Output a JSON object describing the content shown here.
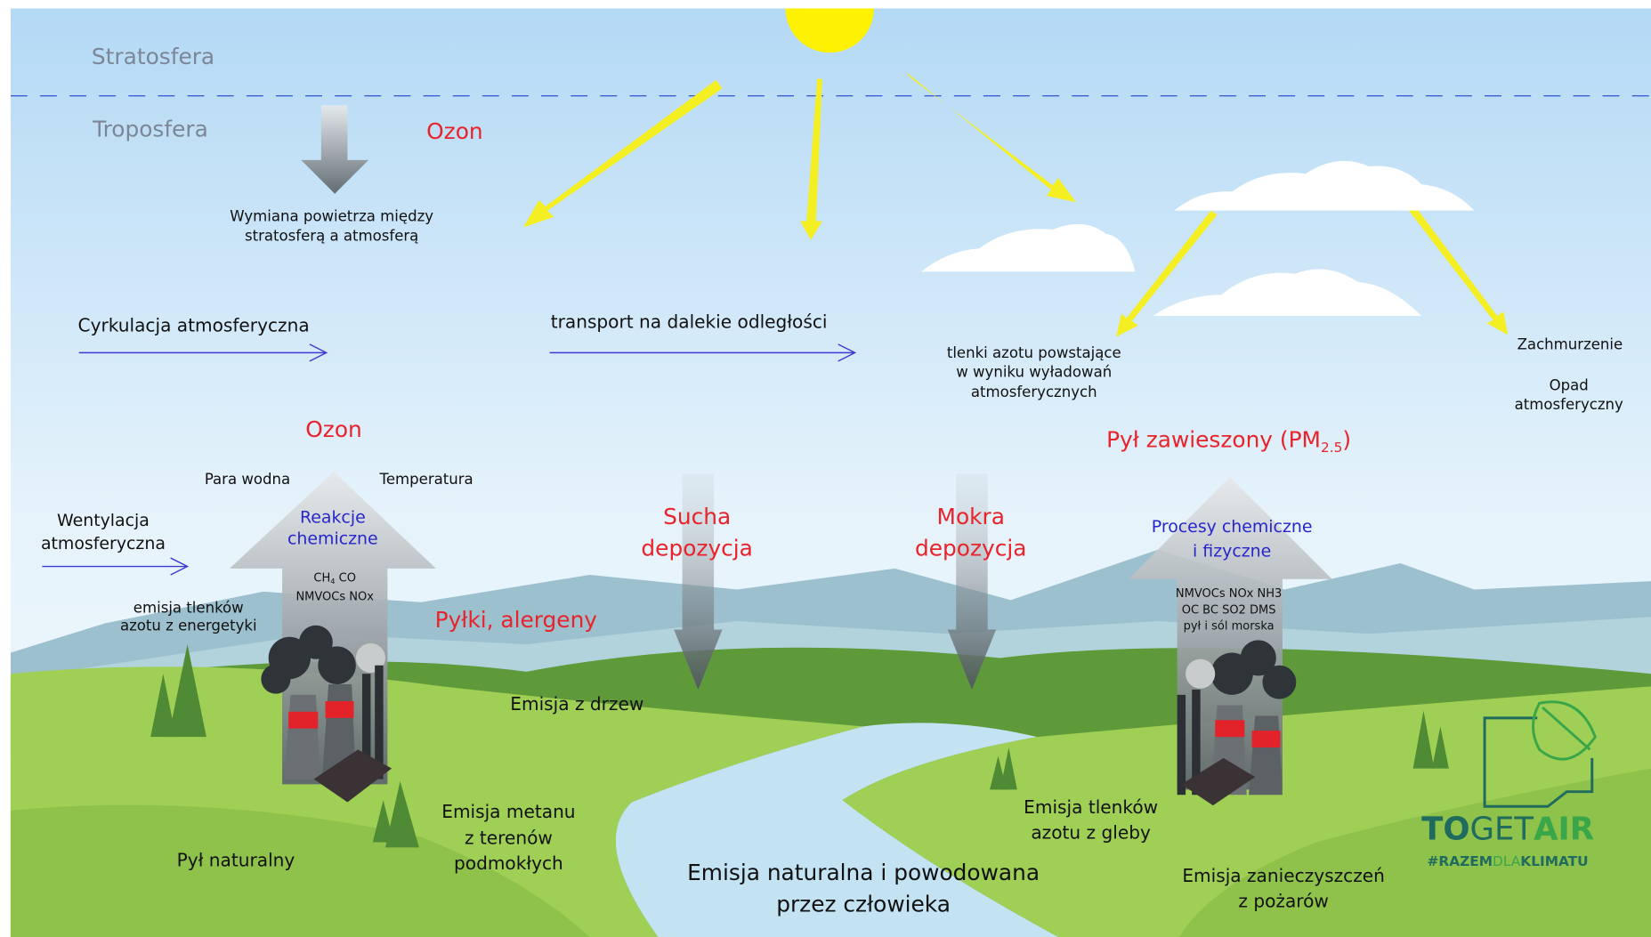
{
  "stratosphere": "Stratosfera",
  "troposphere": "Troposfera",
  "ozone_top": "Ozon",
  "exchange": [
    "Wymiana powietrza między",
    "stratosferą a atmosferą"
  ],
  "circulation": "Cyrkulacja atmosferyczna",
  "long_transport": "transport na dalekie odległości",
  "lightning_nox": [
    "tlenki azotu powstające",
    "w wyniku wyładowań",
    "atmosferycznych"
  ],
  "cloudiness": "Zachmurzenie",
  "precipitation": [
    "Opad",
    "atmosferyczny"
  ],
  "ozone_mid": "Ozon",
  "water_vapour": "Para wodna",
  "temperature": "Temperatura",
  "ventilation": [
    "Wentylacja",
    "atmosferyczna"
  ],
  "reactions": [
    "Reakcje",
    "chemiczne"
  ],
  "precursors_left": [
    "CH",
    "4",
    " CO",
    "NMVOCs NOx"
  ],
  "energy_nox": [
    "emisja tlenków",
    "azotu z energetyki"
  ],
  "pollen": "Pyłki, alergeny",
  "dry_deposition": [
    "Sucha",
    "depozycja"
  ],
  "wet_deposition": [
    "Mokra",
    "depozycja"
  ],
  "pm": [
    "Pył zawieszony (PM",
    "2.5",
    ")"
  ],
  "processes": [
    "Procesy chemiczne",
    "i fizyczne"
  ],
  "precursors_right": [
    "NMVOCs NOx NH3",
    "OC BC SO2 DMS",
    "pył i sól morska"
  ],
  "tree_emission": "Emisja z drzew",
  "methane": [
    "Emisja metanu",
    "z terenów",
    "podmokłych"
  ],
  "natural_dust": "Pył naturalny",
  "total_emission": [
    "Emisja naturalna i powodowana",
    "przez człowieka"
  ],
  "soil_nox": [
    "Emisja tlenków",
    "azotu z gleby"
  ],
  "fire": [
    "Emisja zanieczyszczeń",
    "z pożarów"
  ],
  "logo": {
    "brand": [
      "TO",
      "GET",
      "AIR"
    ],
    "tagline": [
      "#RAZEM",
      "DLA",
      "KLIMATU"
    ]
  }
}
